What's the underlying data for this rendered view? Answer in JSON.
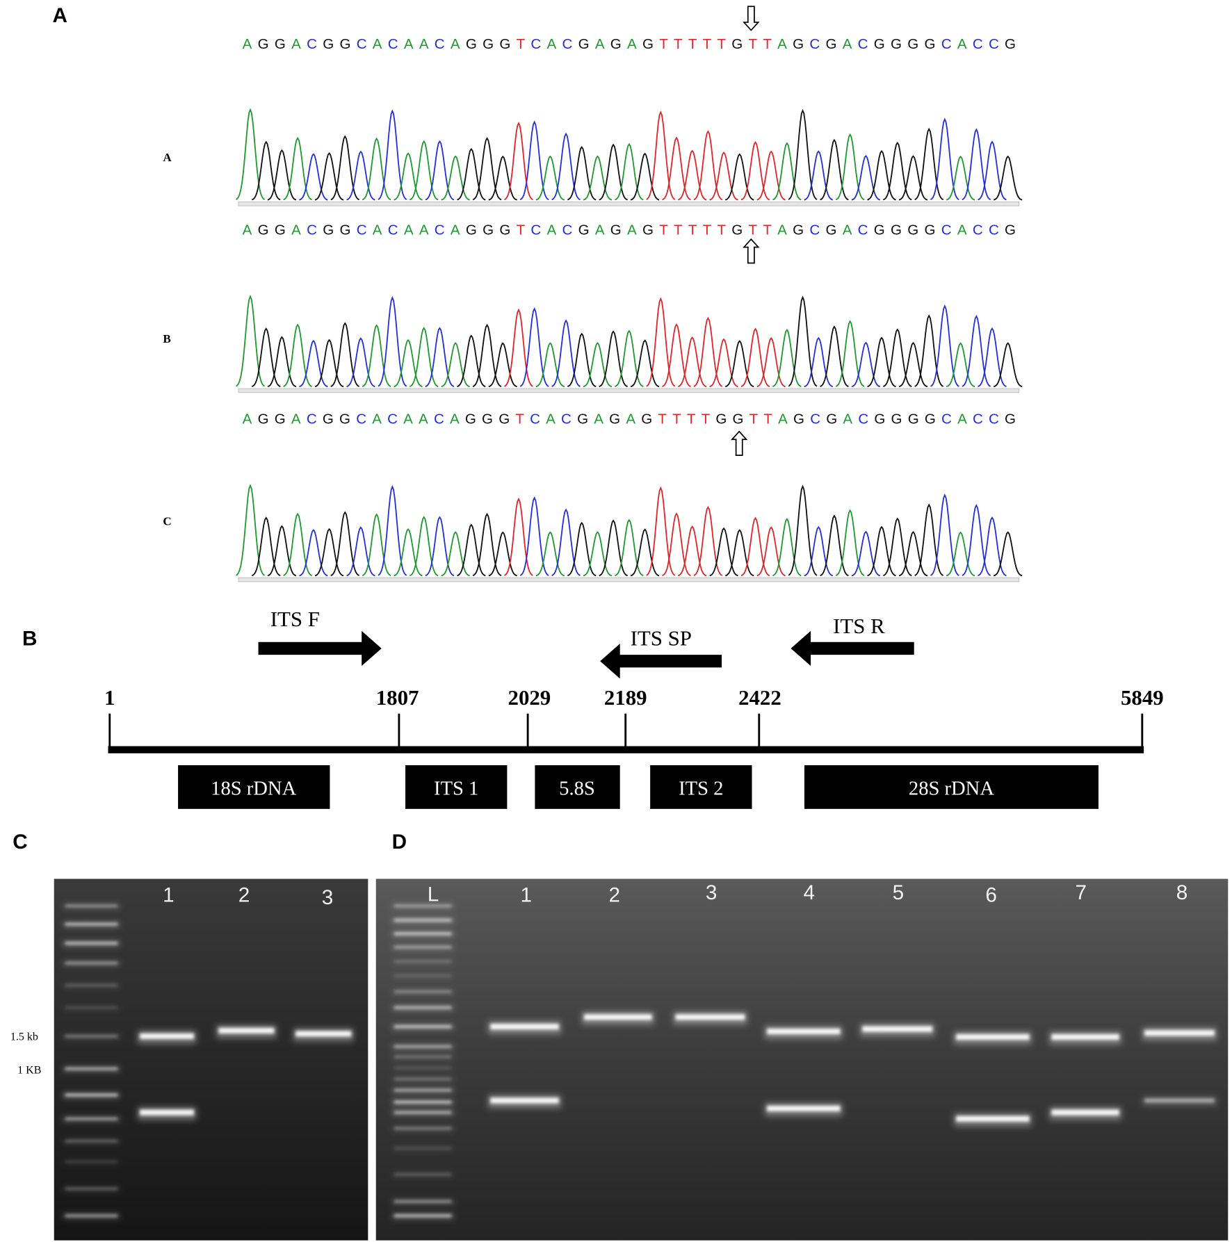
{
  "panel_labels": [
    "A",
    "B",
    "C",
    "D"
  ],
  "sequencing": {
    "sequences": [
      "AGGACGGCACAACAGGGTCACGAGAGTTTTTGTTAGCGACGGGGCACCG",
      "AGGACGGCACAACAGGGTCACGAGAGTTTTTGTTAGCGACGGGGCACCG",
      "AGGACGGCACAACAGGGTCACGAGAGTTTTGGTTAGCGACGGGGCACCG"
    ],
    "trace_labels": [
      "A",
      "B",
      "C"
    ],
    "base_colors": {
      "A": "#1f9a2e",
      "C": "#2430d8",
      "G": "#111111",
      "T": "#e0262b"
    }
  },
  "its_map": {
    "primers": [
      "ITS F",
      "ITS SP",
      "ITS R"
    ],
    "positions": [
      1,
      1807,
      2029,
      2189,
      2422,
      5849
    ],
    "regions": [
      "18S rDNA",
      "ITS 1",
      "5.8S",
      "ITS 2",
      "28S rDNA"
    ]
  },
  "gel_c": {
    "lanes": [
      "1",
      "2",
      "3"
    ],
    "size_markers": [
      "1.5 kb",
      "1 KB"
    ]
  },
  "gel_d": {
    "lanes": [
      "L",
      "1",
      "2",
      "3",
      "4",
      "5",
      "6",
      "7",
      "8"
    ]
  }
}
